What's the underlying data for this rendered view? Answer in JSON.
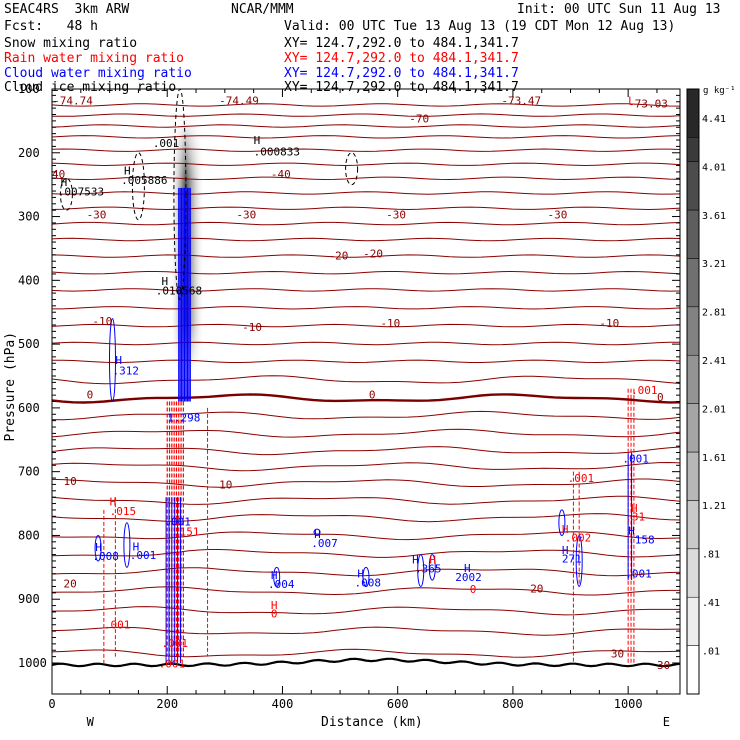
{
  "header": {
    "model": "SEAC4RS  3km ARW",
    "org": "NCAR/MMM",
    "init": "Init: 00 UTC Sun 11 Aug 13",
    "fcst": "Fcst:   48 h",
    "valid": "Valid: 00 UTC Tue 13 Aug 13 (19 CDT Mon 12 Aug 13)",
    "fields": [
      {
        "name": "Snow mixing ratio",
        "xy": "XY= 124.7,292.0 to 484.1,341.7",
        "color": "#000000"
      },
      {
        "name": "Rain water mixing ratio",
        "xy": "XY= 124.7,292.0 to 484.1,341.7",
        "color": "#ff0000"
      },
      {
        "name": "Cloud water mixing ratio",
        "xy": "XY= 124.7,292.0 to 484.1,341.7",
        "color": "#0000ff"
      },
      {
        "name": "Cloud ice mixing ratio",
        "xy": "XY= 124.7,292.0 to 484.1,341.7",
        "color": "#000000"
      }
    ]
  },
  "chart_data": {
    "type": "cross-section contour",
    "xlabel": "Distance (km)",
    "ylabel": "Pressure (hPa)",
    "xlim": [
      0,
      1090
    ],
    "ylim": [
      1050,
      100
    ],
    "x_ticks": [
      0,
      200,
      400,
      600,
      800,
      1000
    ],
    "y_ticks": [
      100,
      200,
      300,
      400,
      500,
      600,
      700,
      800,
      900,
      1000
    ],
    "x_end_labels": {
      "left": "W",
      "right": "E"
    },
    "colorbar": {
      "unit": "g kg⁻¹",
      "levels": [
        ".01",
        ".41",
        ".81",
        "1.21",
        "1.61",
        "2.01",
        "2.41",
        "2.81",
        "3.21",
        "3.61",
        "4.01",
        "4.41"
      ]
    },
    "colors": {
      "temperature": "#8b0000",
      "zero_isotherm": "#7a0000",
      "rain": "#ff0000",
      "cloud_water": "#0000ff",
      "terrain": "#000000"
    },
    "isotherm_labels": [
      {
        "x": 2,
        "p": 118,
        "text": "-74.74"
      },
      {
        "x": 290,
        "p": 118,
        "text": "-74.49"
      },
      {
        "x": 780,
        "p": 118,
        "text": "-73.47"
      },
      {
        "x": 1000,
        "p": 123,
        "text": "-73.03"
      },
      {
        "x": 620,
        "p": 146,
        "text": "-70"
      },
      {
        "x": 0,
        "p": 233,
        "text": "40"
      },
      {
        "x": 380,
        "p": 233,
        "text": "-40"
      },
      {
        "x": 60,
        "p": 297,
        "text": "-30"
      },
      {
        "x": 320,
        "p": 297,
        "text": "-30"
      },
      {
        "x": 580,
        "p": 297,
        "text": "-30"
      },
      {
        "x": 860,
        "p": 297,
        "text": "-30"
      },
      {
        "x": 480,
        "p": 361,
        "text": "-20"
      },
      {
        "x": 540,
        "p": 358,
        "text": "-20"
      },
      {
        "x": 70,
        "p": 464,
        "text": "-10"
      },
      {
        "x": 330,
        "p": 473,
        "text": "-10"
      },
      {
        "x": 570,
        "p": 467,
        "text": "-10"
      },
      {
        "x": 950,
        "p": 467,
        "text": "-10"
      },
      {
        "x": 60,
        "p": 579,
        "text": "0"
      },
      {
        "x": 550,
        "p": 579,
        "text": "0"
      },
      {
        "x": 1050,
        "p": 583,
        "text": "0"
      },
      {
        "x": 20,
        "p": 715,
        "text": "10"
      },
      {
        "x": 290,
        "p": 720,
        "text": "10"
      },
      {
        "x": 20,
        "p": 875,
        "text": "20"
      },
      {
        "x": 830,
        "p": 883,
        "text": "20"
      },
      {
        "x": 970,
        "p": 985,
        "text": "30"
      },
      {
        "x": 1050,
        "p": 1003,
        "text": "30"
      }
    ],
    "extrema_labels": [
      {
        "x": 175,
        "p": 185,
        "text": ".001",
        "color": "#000000"
      },
      {
        "x": 350,
        "p": 180,
        "text": "H",
        "color": "#000000"
      },
      {
        "x": 350,
        "p": 198,
        "text": ".000833",
        "color": "#000000"
      },
      {
        "x": 125,
        "p": 228,
        "text": "H",
        "color": "#000000"
      },
      {
        "x": 120,
        "p": 243,
        "text": ".005886",
        "color": "#000000"
      },
      {
        "x": 15,
        "p": 246,
        "text": "H",
        "color": "#000000"
      },
      {
        "x": 10,
        "p": 261,
        "text": ".007533",
        "color": "#000000"
      },
      {
        "x": 190,
        "p": 401,
        "text": "H",
        "color": "#000000"
      },
      {
        "x": 180,
        "p": 416,
        "text": ".010568",
        "color": "#000000"
      },
      {
        "x": 110,
        "p": 525,
        "text": "H",
        "color": "#0000ff"
      },
      {
        "x": 105,
        "p": 541,
        "text": ".312",
        "color": "#0000ff"
      },
      {
        "x": 200,
        "p": 615,
        "text": "1.298",
        "color": "#0000ff"
      },
      {
        "x": 100,
        "p": 747,
        "text": "H",
        "color": "#ff0000"
      },
      {
        "x": 100,
        "p": 762,
        "text": ".015",
        "color": "#ff0000"
      },
      {
        "x": 195,
        "p": 778,
        "text": ".001",
        "color": "#0000ff"
      },
      {
        "x": 210,
        "p": 794,
        "text": ".151",
        "color": "#ff0000"
      },
      {
        "x": 75,
        "p": 818,
        "text": "H",
        "color": "#0000ff"
      },
      {
        "x": 70,
        "p": 832,
        "text": ".008",
        "color": "#0000ff"
      },
      {
        "x": 140,
        "p": 817,
        "text": "H",
        "color": "#0000ff"
      },
      {
        "x": 135,
        "p": 831,
        "text": ".001",
        "color": "#0000ff"
      },
      {
        "x": 90,
        "p": 940,
        "text": ".001",
        "color": "#ff0000"
      },
      {
        "x": 190,
        "p": 969,
        "text": ".001",
        "color": "#ff0000"
      },
      {
        "x": 185,
        "p": 1001,
        "text": ".001",
        "color": "#ff0000"
      },
      {
        "x": 455,
        "p": 798,
        "text": "H",
        "color": "#0000ff"
      },
      {
        "x": 450,
        "p": 812,
        "text": ".007",
        "color": "#0000ff"
      },
      {
        "x": 380,
        "p": 862,
        "text": "H",
        "color": "#0000ff"
      },
      {
        "x": 375,
        "p": 876,
        "text": ".004",
        "color": "#0000ff"
      },
      {
        "x": 380,
        "p": 909,
        "text": "H",
        "color": "#ff0000"
      },
      {
        "x": 380,
        "p": 922,
        "text": "0",
        "color": "#ff0000"
      },
      {
        "x": 530,
        "p": 860,
        "text": "H",
        "color": "#0000ff"
      },
      {
        "x": 525,
        "p": 874,
        "text": ".008",
        "color": "#0000ff"
      },
      {
        "x": 625,
        "p": 838,
        "text": "H",
        "color": "#0000ff"
      },
      {
        "x": 655,
        "p": 838,
        "text": "H",
        "color": "#ff0000"
      },
      {
        "x": 630,
        "p": 852,
        "text": ".365",
        "color": "#0000ff"
      },
      {
        "x": 715,
        "p": 851,
        "text": "H",
        "color": "#0000ff"
      },
      {
        "x": 700,
        "p": 865,
        "text": "2002",
        "color": "#0000ff"
      },
      {
        "x": 725,
        "p": 884,
        "text": "0",
        "color": "#ff0000"
      },
      {
        "x": 885,
        "p": 790,
        "text": "H",
        "color": "#ff0000"
      },
      {
        "x": 890,
        "p": 803,
        "text": ".002",
        "color": "#ff0000"
      },
      {
        "x": 885,
        "p": 823,
        "text": "H",
        "color": "#0000ff"
      },
      {
        "x": 885,
        "p": 836,
        "text": "271",
        "color": "#0000ff"
      },
      {
        "x": 895,
        "p": 710,
        "text": ".001",
        "color": "#ff0000"
      },
      {
        "x": 990,
        "p": 679,
        "text": ".001",
        "color": "#0000ff"
      },
      {
        "x": 1005,
        "p": 757,
        "text": "H",
        "color": "#ff0000"
      },
      {
        "x": 995,
        "p": 770,
        "text": ".31",
        "color": "#ff0000"
      },
      {
        "x": 1000,
        "p": 792,
        "text": "H",
        "color": "#0000ff"
      },
      {
        "x": 1000,
        "p": 806,
        "text": ".158",
        "color": "#0000ff"
      },
      {
        "x": 995,
        "p": 860,
        "text": ".001",
        "color": "#0000ff"
      },
      {
        "x": 1005,
        "p": 572,
        "text": ".001",
        "color": "#ff0000"
      },
      {
        "x": 1000,
        "p": 118,
        "text": "L",
        "color": "#ff0000"
      }
    ]
  }
}
